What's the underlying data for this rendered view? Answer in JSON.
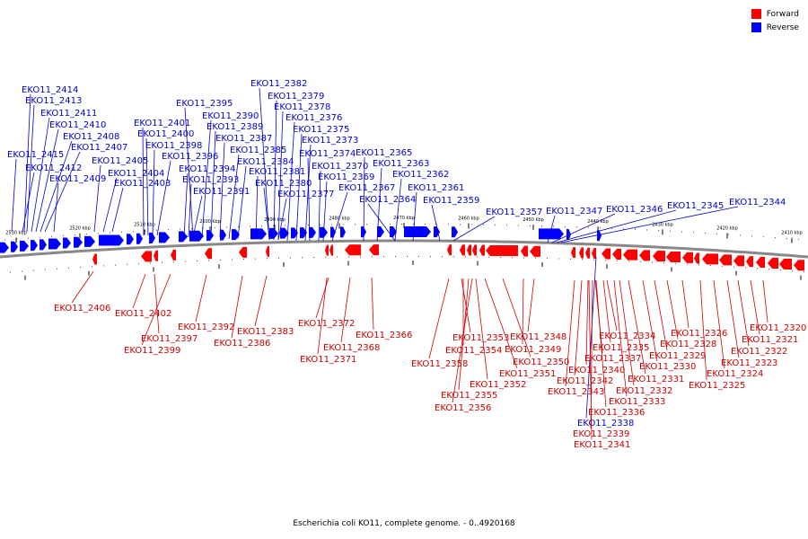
{
  "legend": {
    "forward_label": "Forward",
    "reverse_label": "Reverse"
  },
  "colors": {
    "forward": "#ff0000",
    "reverse": "#0000ff",
    "forward_label": "#cc0000",
    "reverse_label": "#0000cc",
    "tick": "#000000",
    "backbone": "#888888"
  },
  "caption": "Escherichia coli KO11, complete genome. - 0..4920168",
  "scale_ticks": [
    "2530 kbp",
    "2520 kbp",
    "2510 kbp",
    "2500 kbp",
    "2490 kbp",
    "2480 kbp",
    "2470 kbp",
    "2460 kbp",
    "2450 kbp",
    "2440 kbp",
    "2430 kbp",
    "2420 kbp",
    "2410 kbp"
  ],
  "reverse_genes": [
    "EKO11_2414",
    "EKO11_2413",
    "EKO11_2411",
    "EKO11_2410",
    "EKO11_2408",
    "EKO11_2407",
    "EKO11_2415",
    "EKO11_2412",
    "EKO11_2409",
    "EKO11_2405",
    "EKO11_2404",
    "EKO11_2403",
    "EKO11_2401",
    "EKO11_2400",
    "EKO11_2398",
    "EKO11_2396",
    "EKO11_2394",
    "EKO11_2393",
    "EKO11_2391",
    "EKO11_2395",
    "EKO11_2390",
    "EKO11_2389",
    "EKO11_2387",
    "EKO11_2385",
    "EKO11_2384",
    "EKO11_2381",
    "EKO11_2380",
    "EKO11_2377",
    "EKO11_2382",
    "EKO11_2379",
    "EKO11_2378",
    "EKO11_2376",
    "EKO11_2375",
    "EKO11_2373",
    "EKO11_2374",
    "EKO11_2370",
    "EKO11_2369",
    "EKO11_2367",
    "EKO11_2365",
    "EKO11_2363",
    "EKO11_2362",
    "EKO11_2364",
    "EKO11_2361",
    "EKO11_2359",
    "EKO11_2357",
    "EKO11_2347",
    "EKO11_2346",
    "EKO11_2345",
    "EKO11_2344",
    "EKO11_2338"
  ],
  "forward_genes": [
    "EKO11_2406",
    "EKO11_2402",
    "EKO11_2397",
    "EKO11_2399",
    "EKO11_2392",
    "EKO11_2386",
    "EKO11_2383",
    "EKO11_2372",
    "EKO11_2368",
    "EKO11_2371",
    "EKO11_2366",
    "EKO11_2358",
    "EKO11_2353",
    "EKO11_2354",
    "EKO11_2352",
    "EKO11_2355",
    "EKO11_2356",
    "EKO11_2351",
    "EKO11_2350",
    "EKO11_2349",
    "EKO11_2348",
    "EKO11_2343",
    "EKO11_2342",
    "EKO11_2340",
    "EKO11_2337",
    "EKO11_2335",
    "EKO11_2334",
    "EKO11_2341",
    "EKO11_2339",
    "EKO11_2336",
    "EKO11_2333",
    "EKO11_2332",
    "EKO11_2331",
    "EKO11_2330",
    "EKO11_2329",
    "EKO11_2328",
    "EKO11_2326",
    "EKO11_2325",
    "EKO11_2324",
    "EKO11_2323",
    "EKO11_2322",
    "EKO11_2321",
    "EKO11_2320"
  ]
}
